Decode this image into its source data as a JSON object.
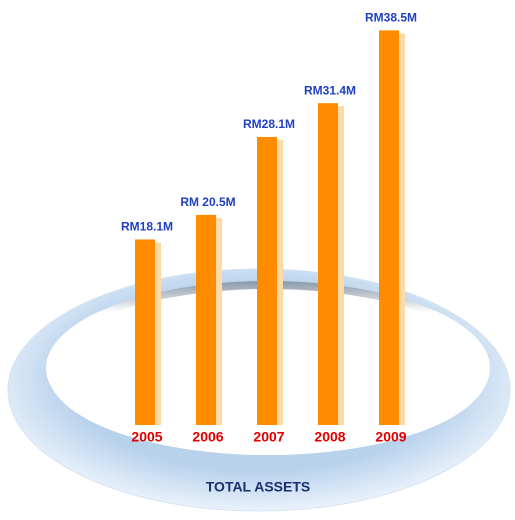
{
  "chart_data": {
    "type": "bar",
    "title": "TOTAL ASSETS",
    "categories": [
      "2005",
      "2006",
      "2007",
      "2008",
      "2009"
    ],
    "values": [
      18.1,
      20.5,
      28.1,
      31.4,
      38.5
    ],
    "value_labels": [
      "RM18.1M",
      "RM 20.5M",
      "RM28.1M",
      "RM31.4M",
      "RM38.5M"
    ],
    "color": "#ff8c00"
  }
}
